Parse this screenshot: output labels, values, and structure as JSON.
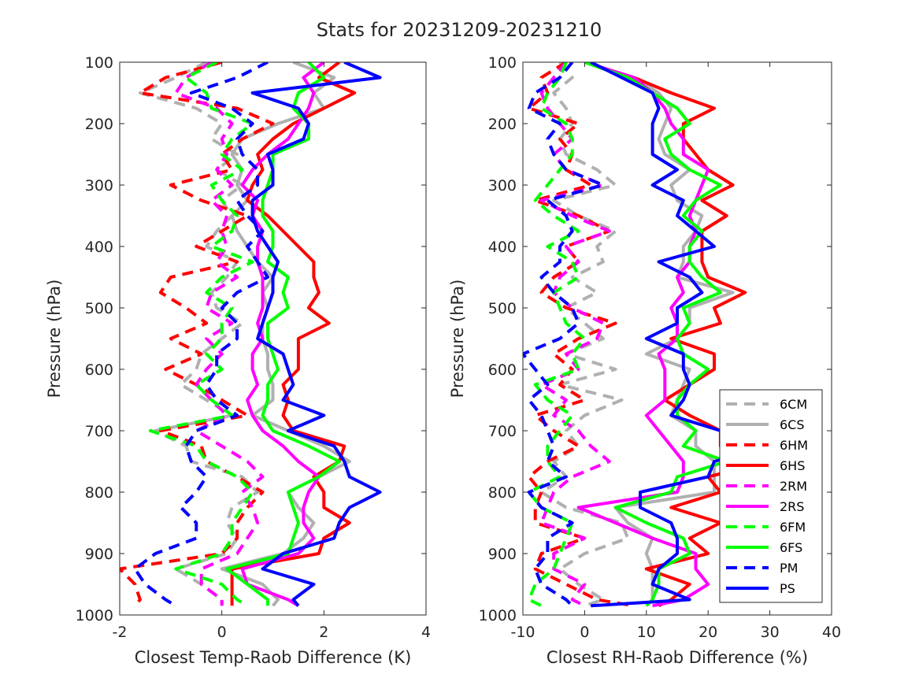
{
  "figure": {
    "title": "Stats for 20231209-20231210"
  },
  "legend": {
    "location": "lower-right of right panel",
    "entries": [
      {
        "label": "6CM",
        "color": "#b0b0b0",
        "style": "dashed"
      },
      {
        "label": "6CS",
        "color": "#b0b0b0",
        "style": "solid"
      },
      {
        "label": "6HM",
        "color": "#ff0000",
        "style": "dashed"
      },
      {
        "label": "6HS",
        "color": "#ff0000",
        "style": "solid"
      },
      {
        "label": "2RM",
        "color": "#ff00ff",
        "style": "dashed"
      },
      {
        "label": "2RS",
        "color": "#ff00ff",
        "style": "solid"
      },
      {
        "label": "6FM",
        "color": "#00ff00",
        "style": "dashed"
      },
      {
        "label": "6FS",
        "color": "#00ff00",
        "style": "solid"
      },
      {
        "label": "PM",
        "color": "#0000ff",
        "style": "dashed"
      },
      {
        "label": "PS",
        "color": "#0000ff",
        "style": "solid"
      }
    ]
  },
  "chart_data": [
    {
      "type": "line",
      "orientation": "profile (x = difference, y = pressure, inverted)",
      "title": "",
      "xlabel": "Closest Temp-Raob Difference (K)",
      "ylabel": "Pressure (hPa)",
      "xlim": [
        -2,
        4
      ],
      "ylim": [
        1000,
        100
      ],
      "y_inverted": true,
      "grid": false,
      "xticks": [
        "-2",
        "0",
        "2",
        "4"
      ],
      "yticks": [
        "100",
        "200",
        "300",
        "400",
        "500",
        "600",
        "700",
        "800",
        "900",
        "1000"
      ],
      "pressure": [
        100,
        125,
        150,
        175,
        200,
        225,
        250,
        275,
        300,
        325,
        350,
        375,
        400,
        425,
        450,
        475,
        500,
        525,
        550,
        575,
        600,
        625,
        650,
        675,
        700,
        725,
        750,
        775,
        800,
        825,
        850,
        875,
        900,
        925,
        950,
        975,
        985
      ],
      "series": [
        {
          "name": "6CM",
          "x": [
            -0.3,
            -0.9,
            -1.6,
            -0.5,
            0.0,
            -0.2,
            0.3,
            -0.1,
            0.4,
            0.0,
            0.2,
            -0.1,
            -0.3,
            0.3,
            0.1,
            -0.2,
            -0.1,
            0.4,
            0.0,
            -0.4,
            -0.5,
            -0.8,
            -0.3,
            0.2,
            -1.3,
            -0.7,
            -0.6,
            0.4,
            0.7,
            0.2,
            0.1,
            0.3,
            0.1,
            -0.9,
            -0.4,
            0.0,
            0.0
          ]
        },
        {
          "name": "6CS",
          "x": [
            1.4,
            2.2,
            1.8,
            2.0,
            1.1,
            0.4,
            0.2,
            0.4,
            0.3,
            0.5,
            0.2,
            0.3,
            0.5,
            0.7,
            1.0,
            0.8,
            0.9,
            0.8,
            0.8,
            0.9,
            0.9,
            1.0,
            1.0,
            0.6,
            1.3,
            2.0,
            2.5,
            1.9,
            1.3,
            1.5,
            1.8,
            1.6,
            1.2,
            0.0,
            0.8,
            1.1,
            1.0
          ]
        },
        {
          "name": "6HM",
          "x": [
            0.0,
            -1.1,
            -1.6,
            0.3,
            1.0,
            0.4,
            0.0,
            0.2,
            -1.0,
            -0.4,
            0.5,
            0.0,
            -0.5,
            0.3,
            -1.0,
            -1.2,
            -0.7,
            -0.3,
            -1.0,
            -0.4,
            -1.1,
            -0.5,
            0.0,
            0.5,
            -1.2,
            -0.4,
            -0.3,
            0.3,
            0.8,
            0.5,
            0.3,
            0.3,
            0.0,
            -2.0,
            -1.7,
            -1.6,
            -1.7
          ]
        },
        {
          "name": "6HS",
          "x": [
            2.3,
            1.9,
            2.6,
            2.0,
            1.4,
            1.0,
            0.7,
            0.8,
            0.6,
            0.5,
            0.9,
            1.2,
            1.5,
            1.8,
            1.8,
            1.9,
            1.7,
            2.1,
            1.5,
            1.5,
            1.5,
            1.2,
            1.3,
            1.2,
            1.4,
            2.4,
            2.3,
            1.8,
            2.0,
            2.0,
            2.5,
            2.0,
            1.9,
            0.2,
            0.2,
            0.2,
            0.2
          ]
        },
        {
          "name": "2RM",
          "x": [
            -0.2,
            -0.7,
            -0.9,
            -0.1,
            0.2,
            0.0,
            0.1,
            -0.1,
            0.2,
            -0.2,
            0.1,
            0.0,
            0.1,
            -0.1,
            0.3,
            -0.2,
            -0.3,
            0.2,
            -0.3,
            0.0,
            -0.3,
            -0.5,
            -0.2,
            0.1,
            -0.5,
            0.0,
            0.5,
            0.8,
            0.4,
            0.6,
            0.7,
            0.5,
            0.3,
            -0.4,
            -0.4,
            0.0,
            0.0
          ]
        },
        {
          "name": "2RS",
          "x": [
            2.0,
            1.6,
            1.8,
            1.7,
            1.5,
            1.3,
            0.9,
            0.6,
            0.4,
            0.7,
            0.6,
            0.8,
            0.7,
            0.7,
            0.8,
            0.8,
            0.8,
            0.7,
            0.8,
            0.6,
            0.6,
            0.7,
            0.5,
            0.6,
            0.8,
            1.2,
            1.5,
            1.9,
            1.7,
            1.6,
            1.6,
            1.8,
            1.5,
            0.4,
            0.5,
            1.3,
            1.5
          ]
        },
        {
          "name": "6FM",
          "x": [
            -0.1,
            -0.7,
            -0.3,
            -0.2,
            0.6,
            0.2,
            0.0,
            0.4,
            -0.2,
            0.0,
            0.3,
            0.2,
            -0.2,
            0.6,
            0.0,
            -0.3,
            0.2,
            0.0,
            0.0,
            -0.3,
            0.0,
            -0.5,
            -0.2,
            0.2,
            -1.4,
            -0.5,
            -0.3,
            0.3,
            0.6,
            0.4,
            0.2,
            0.2,
            0.0,
            -0.9,
            0.0,
            0.3,
            0.5
          ]
        },
        {
          "name": "6FS",
          "x": [
            1.7,
            2.0,
            1.5,
            1.4,
            1.7,
            1.7,
            1.0,
            1.0,
            0.9,
            0.8,
            0.8,
            1.0,
            1.0,
            0.9,
            1.3,
            1.2,
            1.3,
            0.9,
            0.9,
            1.0,
            1.1,
            0.9,
            0.9,
            0.8,
            1.0,
            1.7,
            2.3,
            1.9,
            1.3,
            1.4,
            1.5,
            1.4,
            1.3,
            0.1,
            0.5,
            0.9,
            0.9
          ]
        },
        {
          "name": "PM",
          "x": [
            0.9,
            0.3,
            -0.6,
            0.2,
            0.6,
            0.3,
            0.4,
            0.7,
            0.7,
            0.3,
            0.5,
            0.8,
            0.5,
            0.7,
            0.9,
            0.3,
            0.0,
            0.3,
            0.3,
            -0.1,
            -0.1,
            -0.3,
            -0.1,
            0.3,
            -0.5,
            -0.7,
            -0.6,
            -0.3,
            -0.5,
            -0.8,
            -0.5,
            -0.5,
            -1.3,
            -1.7,
            -1.5,
            -1.1,
            -0.9
          ]
        },
        {
          "name": "PS",
          "x": [
            2.4,
            3.1,
            0.6,
            1.5,
            1.7,
            1.6,
            0.9,
            1.0,
            1.0,
            0.6,
            0.6,
            0.7,
            0.9,
            1.1,
            1.0,
            1.0,
            0.9,
            0.8,
            0.7,
            1.2,
            1.3,
            1.4,
            1.2,
            2.0,
            1.3,
            2.2,
            2.4,
            2.5,
            3.1,
            2.5,
            2.3,
            2.2,
            1.2,
            0.8,
            1.8,
            1.4,
            1.5
          ]
        }
      ]
    },
    {
      "type": "line",
      "orientation": "profile (x = difference, y = pressure, inverted)",
      "title": "",
      "xlabel": "Closest RH-Raob Difference (%)",
      "ylabel": "Pressure (hPa)",
      "xlim": [
        -10,
        40
      ],
      "ylim": [
        1000,
        100
      ],
      "y_inverted": true,
      "grid": false,
      "xticks": [
        "-10",
        "0",
        "10",
        "20",
        "30",
        "40"
      ],
      "yticks": [
        "100",
        "200",
        "300",
        "400",
        "500",
        "600",
        "700",
        "800",
        "900",
        "1000"
      ],
      "pressure": [
        100,
        125,
        150,
        175,
        200,
        225,
        250,
        275,
        300,
        325,
        350,
        375,
        400,
        425,
        450,
        475,
        500,
        525,
        550,
        575,
        600,
        625,
        650,
        675,
        700,
        725,
        750,
        775,
        800,
        825,
        850,
        875,
        900,
        925,
        950,
        975,
        985
      ],
      "series": [
        {
          "name": "6CM",
          "x": [
            -4,
            -2,
            -5,
            -3,
            -2,
            -4,
            -3,
            2,
            5,
            -5,
            -1,
            5,
            2,
            3,
            -2,
            2,
            -3,
            0,
            3,
            -3,
            5,
            -4,
            6,
            0,
            -3,
            -1,
            -5,
            -3,
            -7,
            -3,
            6,
            7,
            0,
            -4,
            -1,
            3,
            0
          ]
        },
        {
          "name": "6CS",
          "x": [
            0,
            8,
            12,
            14,
            13,
            12,
            13,
            17,
            14,
            15,
            19,
            18,
            16,
            16,
            15,
            24,
            17,
            17,
            15,
            10,
            17,
            16,
            15,
            14,
            18,
            18,
            21,
            21,
            21,
            5,
            7,
            11,
            10,
            11,
            11,
            11,
            10
          ]
        },
        {
          "name": "6HM",
          "x": [
            -3,
            -7,
            -6,
            -9,
            -1,
            -4,
            -2,
            -3,
            1,
            -8,
            -1,
            4,
            -3,
            -1,
            -5,
            -7,
            -3,
            5,
            -1,
            -5,
            -2,
            -4,
            0,
            -8,
            -5,
            -1,
            -6,
            -9,
            -7,
            -8,
            -8,
            0,
            -7,
            -8,
            -3,
            2,
            8
          ]
        },
        {
          "name": "6HS",
          "x": [
            0,
            8,
            14,
            21,
            16,
            16,
            18,
            20,
            24,
            19,
            23,
            19,
            19,
            19,
            20,
            26,
            21,
            22,
            14,
            21,
            21,
            17,
            13,
            17,
            22,
            22,
            30,
            20,
            22,
            14,
            22,
            17,
            20,
            10,
            17,
            14,
            12
          ]
        },
        {
          "name": "2RM",
          "x": [
            -3,
            -5,
            -7,
            -6,
            -4,
            -2,
            -5,
            -3,
            3,
            -7,
            -2,
            4,
            -3,
            -1,
            -4,
            -5,
            -2,
            3,
            2,
            -3,
            -1,
            -7,
            -3,
            -5,
            -1,
            1,
            4,
            -2,
            -5,
            -6,
            -7,
            0,
            -5,
            -5,
            0,
            -2,
            0
          ]
        },
        {
          "name": "2RS",
          "x": [
            0,
            8,
            11,
            13,
            14,
            16,
            16,
            20,
            19,
            18,
            17,
            18,
            17,
            17,
            15,
            16,
            14,
            15,
            15,
            12,
            13,
            13,
            13,
            10,
            12,
            14,
            16,
            16,
            15,
            -1,
            5,
            11,
            18,
            18,
            20,
            16,
            11
          ]
        },
        {
          "name": "6FM",
          "x": [
            -3,
            -4,
            -6,
            -7,
            -3,
            -2,
            -2,
            -4,
            -6,
            -8,
            -5,
            -1,
            -6,
            -2,
            -1,
            -5,
            -4,
            -3,
            0,
            -2,
            -1,
            -8,
            -6,
            -2,
            -4,
            -6,
            -6,
            -4,
            -9,
            -7,
            -2,
            -3,
            -4,
            -5,
            -8,
            -9,
            -7
          ]
        },
        {
          "name": "6FS",
          "x": [
            0,
            7,
            11,
            15,
            17,
            13,
            14,
            17,
            22,
            18,
            16,
            19,
            17,
            17,
            19,
            22,
            16,
            17,
            15,
            16,
            20,
            17,
            15,
            15,
            18,
            16,
            23,
            15,
            14,
            5,
            10,
            16,
            17,
            12,
            12,
            11,
            10
          ]
        },
        {
          "name": "PM",
          "x": [
            -2,
            -4,
            -8,
            -9,
            -4,
            -6,
            -5,
            -3,
            3,
            -6,
            -3,
            -2,
            -4,
            -4,
            -7,
            -5,
            -2,
            -1,
            -4,
            -10,
            -8,
            -6,
            -9,
            -7,
            -6,
            -5,
            -6,
            -3,
            -9,
            -7,
            -2,
            -6,
            -6,
            -8,
            -7,
            -3,
            -2
          ]
        },
        {
          "name": "PS",
          "x": [
            1,
            6,
            11,
            12,
            11,
            11,
            11,
            15,
            11,
            16,
            15,
            18,
            21,
            12,
            17,
            19,
            15,
            15,
            10,
            16,
            16,
            17,
            16,
            14,
            22,
            30,
            21,
            20,
            9,
            9,
            14,
            15,
            15,
            12,
            11,
            17,
            1
          ]
        }
      ]
    }
  ]
}
